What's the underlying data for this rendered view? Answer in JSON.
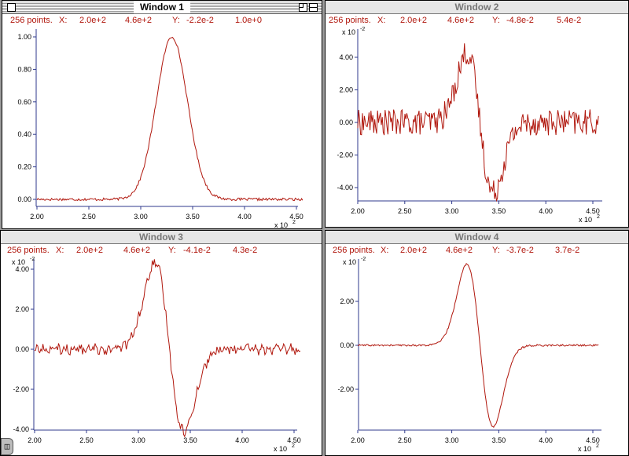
{
  "colors": {
    "trace": "#b0160c",
    "axis": "#2f3a8c",
    "readout": "#b0160c",
    "desktop": "#9c9c9c"
  },
  "windows": [
    {
      "title": "Window 1",
      "active": true,
      "readout": {
        "points": "256 points.",
        "x_label": "X:",
        "x_min": "2.0e+2",
        "x_max": "4.6e+2",
        "y_label": "Y:",
        "y_min": "-2.2e-2",
        "y_max": "1.0e+0"
      },
      "y_exponent_label": "",
      "x_exponent_label": "x 10",
      "x_exponent_power": "2",
      "y_ticks": [
        "0.00",
        "0.20",
        "0.40",
        "0.60",
        "0.80",
        "1.00"
      ],
      "x_ticks": [
        "2.00",
        "2.50",
        "3.00",
        "3.50",
        "4.00",
        "4.50"
      ]
    },
    {
      "title": "Window 2",
      "active": false,
      "readout": {
        "points": "256 points.",
        "x_label": "X:",
        "x_min": "2.0e+2",
        "x_max": "4.6e+2",
        "y_label": "Y:",
        "y_min": "-4.8e-2",
        "y_max": "5.4e-2"
      },
      "y_exponent_label": "x 10",
      "y_exponent_power": "-2",
      "x_exponent_label": "x 10",
      "x_exponent_power": "2",
      "y_ticks": [
        "-4.00",
        "-2.00",
        "0.00",
        "2.00",
        "4.00"
      ],
      "x_ticks": [
        "2.00",
        "2.50",
        "3.00",
        "3.50",
        "4.00",
        "4.50"
      ]
    },
    {
      "title": "Window 3",
      "active": false,
      "readout": {
        "points": "256 points.",
        "x_label": "X:",
        "x_min": "2.0e+2",
        "x_max": "4.6e+2",
        "y_label": "Y:",
        "y_min": "-4.1e-2",
        "y_max": "4.3e-2"
      },
      "y_exponent_label": "x 10",
      "y_exponent_power": "-2",
      "x_exponent_label": "x 10",
      "x_exponent_power": "2",
      "y_ticks": [
        "-4.00",
        "-2.00",
        "0.00",
        "2.00",
        "4.00"
      ],
      "x_ticks": [
        "2.00",
        "2.50",
        "3.00",
        "3.50",
        "4.00",
        "4.50"
      ]
    },
    {
      "title": "Window 4",
      "active": false,
      "readout": {
        "points": "256 points.",
        "x_label": "X:",
        "x_min": "2.0e+2",
        "x_max": "4.6e+2",
        "y_label": "Y:",
        "y_min": "-3.7e-2",
        "y_max": "3.7e-2"
      },
      "y_exponent_label": "x 10",
      "y_exponent_power": "-2",
      "x_exponent_label": "x 10",
      "x_exponent_power": "2",
      "y_ticks": [
        "-2.00",
        "0.00",
        "2.00"
      ],
      "x_ticks": [
        "2.00",
        "2.50",
        "3.00",
        "3.50",
        "4.00",
        "4.50"
      ]
    }
  ],
  "grow_box_glyph": "◫",
  "chart_data": [
    {
      "type": "line",
      "window": "Window 1",
      "shape": "gaussian",
      "xlim": [
        200,
        456
      ],
      "ylim": [
        -0.022,
        1.0
      ],
      "peak_x": 330,
      "peak_y": 1.0,
      "noise": 0.008,
      "x": [
        200,
        220,
        240,
        260,
        280,
        290,
        300,
        310,
        320,
        330,
        340,
        350,
        360,
        370,
        380,
        400,
        420,
        440,
        456
      ],
      "y": [
        0.0,
        0.0,
        0.0,
        0.0,
        0.02,
        0.07,
        0.22,
        0.5,
        0.86,
        1.0,
        0.86,
        0.5,
        0.2,
        0.06,
        0.01,
        0.0,
        0.0,
        0.0,
        0.0
      ]
    },
    {
      "type": "line",
      "window": "Window 2",
      "shape": "noisy-derivative",
      "xlim": [
        200,
        456
      ],
      "ylim": [
        -0.048,
        0.054
      ],
      "noise": 0.008,
      "x": [
        200,
        280,
        300,
        315,
        330,
        345,
        360,
        380,
        400,
        456
      ],
      "y": [
        0.0,
        0.001,
        0.02,
        0.043,
        0.0,
        -0.043,
        -0.02,
        -0.001,
        0.0,
        0.0
      ]
    },
    {
      "type": "line",
      "window": "Window 3",
      "shape": "smoothed-derivative",
      "xlim": [
        200,
        456
      ],
      "ylim": [
        -0.041,
        0.043
      ],
      "noise": 0.002,
      "x": [
        200,
        280,
        300,
        315,
        330,
        345,
        360,
        380,
        400,
        456
      ],
      "y": [
        0.0,
        0.001,
        0.02,
        0.043,
        0.0,
        -0.041,
        -0.02,
        -0.001,
        0.0,
        0.0
      ]
    },
    {
      "type": "line",
      "window": "Window 4",
      "shape": "smooth-derivative",
      "xlim": [
        200,
        456
      ],
      "ylim": [
        -0.037,
        0.037
      ],
      "noise": 0.0004,
      "x": [
        200,
        280,
        300,
        315,
        330,
        345,
        360,
        380,
        400,
        456
      ],
      "y": [
        0.0,
        0.001,
        0.02,
        0.037,
        0.0,
        -0.037,
        -0.02,
        -0.001,
        0.0,
        0.0
      ]
    }
  ]
}
